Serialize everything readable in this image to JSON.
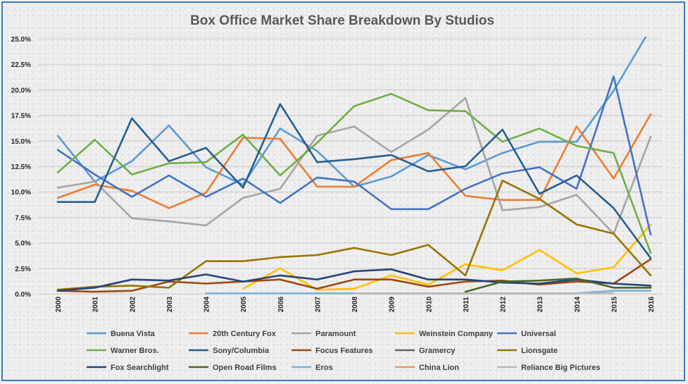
{
  "chart_data": {
    "type": "line",
    "title": "Box Office Market Share Breakdown By Studios",
    "xlabel": "",
    "ylabel": "",
    "x": [
      "2000",
      "2001",
      "2002",
      "2003",
      "2004",
      "2005",
      "2006",
      "2007",
      "2008",
      "2009",
      "2010",
      "2011",
      "2012",
      "2013",
      "2014",
      "2015",
      "2016"
    ],
    "yticks": [
      "0.0%",
      "2.5%",
      "5.0%",
      "7.5%",
      "10.0%",
      "12.5%",
      "15.0%",
      "17.5%",
      "20.0%",
      "22.5%",
      "25.0%"
    ],
    "ylim": [
      0,
      25
    ],
    "grid": true,
    "legend_position": "bottom",
    "series": [
      {
        "name": "Buena Vista",
        "color": "#5b9bd5",
        "values": [
          15.5,
          11.0,
          13.0,
          16.5,
          12.4,
          10.7,
          16.2,
          14.0,
          10.5,
          11.5,
          13.6,
          12.2,
          13.8,
          14.9,
          14.9,
          19.9,
          26.0
        ]
      },
      {
        "name": "20th Century Fox",
        "color": "#ed7d31",
        "values": [
          9.4,
          10.7,
          10.1,
          8.4,
          9.9,
          15.3,
          15.2,
          10.5,
          10.5,
          13.1,
          13.8,
          9.6,
          9.2,
          9.2,
          16.4,
          11.3,
          17.6
        ]
      },
      {
        "name": "Paramount",
        "color": "#a5a5a5",
        "values": [
          10.4,
          11.0,
          7.4,
          7.1,
          6.7,
          9.4,
          10.3,
          15.5,
          16.4,
          13.9,
          16.1,
          19.2,
          8.2,
          8.5,
          9.7,
          5.9,
          15.4
        ]
      },
      {
        "name": "Weinstein Company",
        "color": "#ffc000",
        "values": [
          null,
          null,
          null,
          null,
          null,
          0.5,
          2.5,
          0.4,
          0.5,
          1.8,
          0.9,
          2.9,
          2.3,
          4.3,
          2.0,
          2.6,
          6.8
        ]
      },
      {
        "name": "Universal",
        "color": "#4472c4",
        "values": [
          14.1,
          11.7,
          9.5,
          11.6,
          9.5,
          11.3,
          8.9,
          11.4,
          11.0,
          8.3,
          8.3,
          10.3,
          11.8,
          12.4,
          10.3,
          21.3,
          5.8
        ]
      },
      {
        "name": "Warner Bros.",
        "color": "#70ad47",
        "values": [
          11.9,
          15.1,
          11.7,
          12.8,
          12.9,
          15.6,
          11.6,
          14.8,
          18.4,
          19.6,
          18.0,
          17.9,
          14.9,
          16.2,
          14.5,
          13.8,
          4.0
        ]
      },
      {
        "name": "Sony/Columbia",
        "color": "#255e91",
        "values": [
          9.0,
          9.0,
          17.2,
          13.0,
          14.3,
          10.4,
          18.6,
          12.9,
          13.2,
          13.6,
          12.0,
          12.5,
          16.1,
          9.8,
          11.6,
          8.4,
          3.5
        ]
      },
      {
        "name": "Focus Features",
        "color": "#9e480e",
        "values": [
          0.3,
          0.2,
          0.3,
          1.2,
          1.0,
          1.2,
          1.4,
          0.5,
          1.4,
          1.4,
          0.7,
          1.2,
          1.3,
          0.9,
          1.2,
          1.0,
          3.4
        ]
      },
      {
        "name": "Gramercy",
        "color": "#636363",
        "values": [
          null,
          null,
          null,
          null,
          null,
          null,
          null,
          null,
          null,
          null,
          null,
          null,
          null,
          null,
          null,
          null,
          null
        ]
      },
      {
        "name": "Lionsgate",
        "color": "#997300",
        "values": [
          0.4,
          0.7,
          0.8,
          0.6,
          3.2,
          3.2,
          3.6,
          3.8,
          4.5,
          3.8,
          4.8,
          1.8,
          11.1,
          9.3,
          6.8,
          5.9,
          1.8
        ]
      },
      {
        "name": "Fox Searchlight",
        "color": "#264478",
        "values": [
          0.3,
          0.6,
          1.4,
          1.3,
          1.9,
          1.2,
          1.8,
          1.4,
          2.2,
          2.4,
          1.4,
          1.4,
          1.1,
          1.0,
          1.4,
          1.0,
          0.8
        ]
      },
      {
        "name": "Open Road Films",
        "color": "#43682b",
        "values": [
          null,
          null,
          null,
          null,
          null,
          null,
          null,
          null,
          null,
          null,
          null,
          0.2,
          1.2,
          1.3,
          1.5,
          0.6,
          0.6
        ]
      },
      {
        "name": "Eros",
        "color": "#7cafdd",
        "values": [
          null,
          null,
          null,
          null,
          0.05,
          0.05,
          0.05,
          0.05,
          0.05,
          0.05,
          0.05,
          0.05,
          0.05,
          0.05,
          0.05,
          0.3,
          0.3
        ]
      },
      {
        "name": "China Lion",
        "color": "#f1975a",
        "values": [
          null,
          null,
          null,
          null,
          null,
          null,
          null,
          null,
          null,
          null,
          null,
          0.05,
          0.05,
          0.05,
          0.05,
          null,
          null
        ]
      },
      {
        "name": "Reliance Big Pictures",
        "color": "#b7b7b7",
        "values": [
          null,
          null,
          null,
          null,
          null,
          null,
          null,
          null,
          0.05,
          0.05,
          0.05,
          0.05,
          0.05,
          0.05,
          0.05,
          0.05,
          null
        ]
      }
    ]
  }
}
